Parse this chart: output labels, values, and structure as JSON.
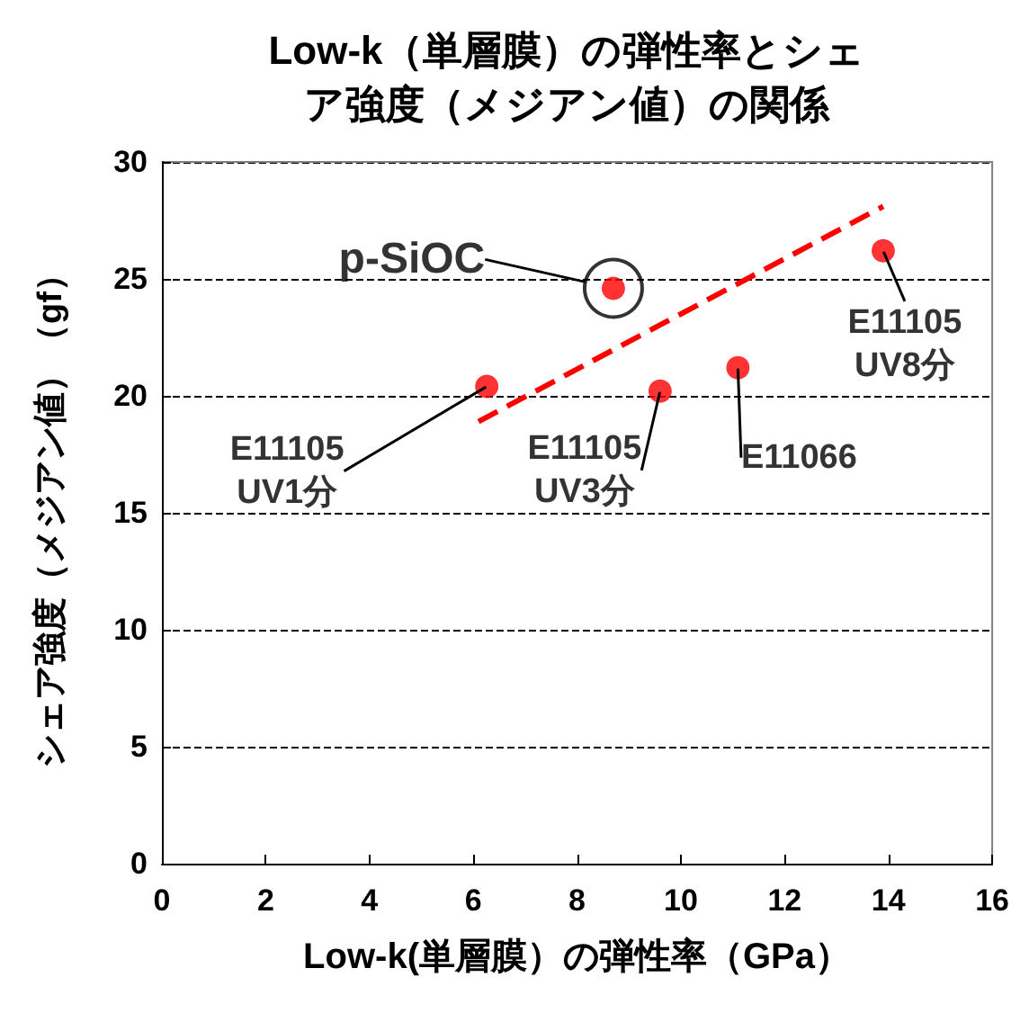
{
  "chart_data": {
    "type": "scatter",
    "title": "Low-k（単層膜）の弾性率とシェア強度（メジアン値）の関係",
    "xlabel": "Low-k(単層膜）の弾性率（GPa）",
    "ylabel": "シェア強度（メジアン値）（gf）",
    "x": [
      6.26,
      8.7,
      9.6,
      11.1,
      13.9
    ],
    "values": [
      20.4,
      24.6,
      20.2,
      21.2,
      26.2
    ],
    "color": "#ff0000",
    "marker": "circle",
    "series": [
      {
        "type": "line",
        "x": [
          6.1,
          13.9
        ],
        "values": [
          18.9,
          28.1
        ],
        "color": "#ff0000",
        "marker": "none",
        "line_style": "dashed"
      }
    ],
    "xlim": [
      0,
      16
    ],
    "xticks": [
      0,
      2,
      4,
      6,
      8,
      10,
      12,
      14,
      16
    ],
    "ylim": [
      0,
      30
    ],
    "yticks": [
      0,
      5,
      10,
      15,
      20,
      25,
      30
    ],
    "grid": "y",
    "annotations": [
      {
        "text": "p-SiOC",
        "x": 8.7,
        "y": 24.6
      },
      {
        "text": "E11105\nUV1分",
        "x": 6.26,
        "y": 20.4
      },
      {
        "text": "E11105\nUV3分",
        "x": 9.6,
        "y": 20.2
      },
      {
        "text": "E11066",
        "x": 11.1,
        "y": 21.2
      },
      {
        "text": "E11105\nUV8分",
        "x": 13.9,
        "y": 26.2
      }
    ]
  }
}
